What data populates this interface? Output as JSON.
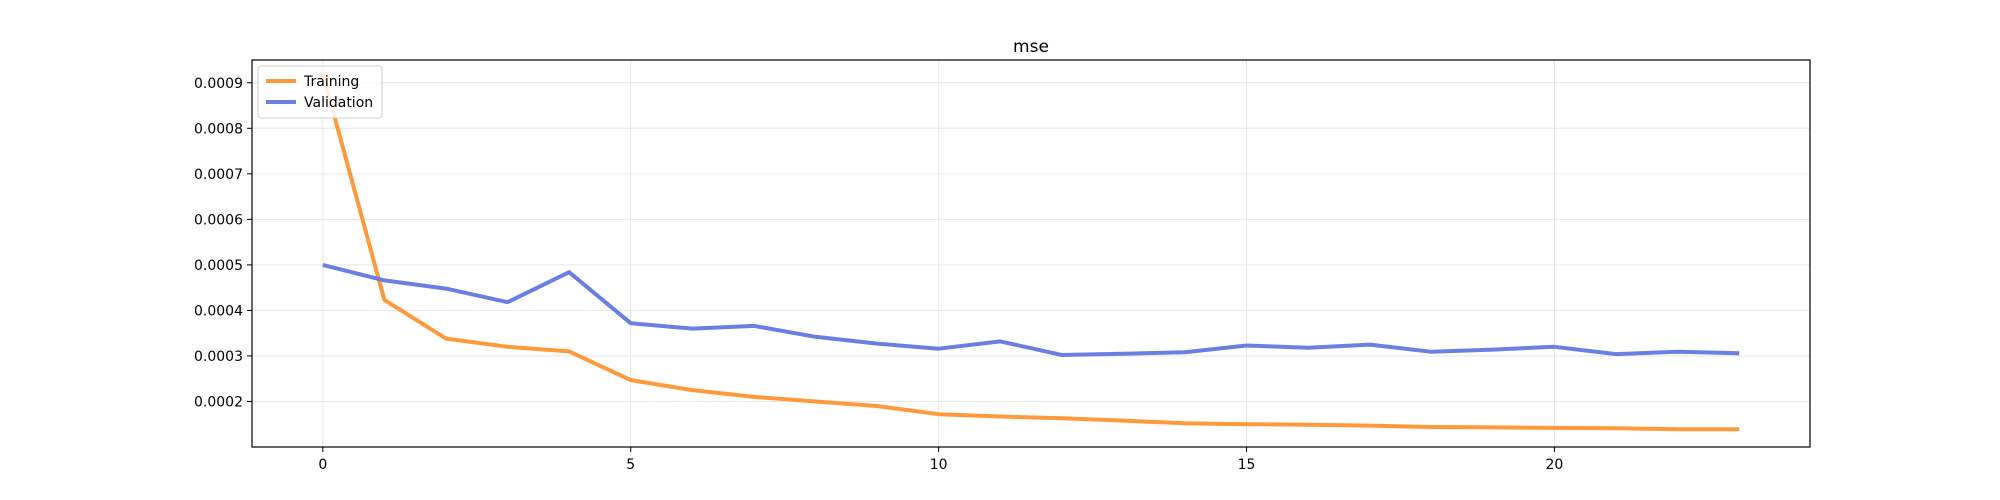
{
  "chart_data": {
    "type": "line",
    "title": "mse",
    "xlabel": "",
    "ylabel": "",
    "xlim": [
      -1.15,
      24.15
    ],
    "ylim": [
      0.0001,
      0.00095
    ],
    "xticks": [
      0,
      5,
      10,
      15,
      20
    ],
    "yticks": [
      0.0002,
      0.0003,
      0.0004,
      0.0005,
      0.0006,
      0.0007,
      0.0008,
      0.0009
    ],
    "ytick_labels": [
      "0.0002",
      "0.0003",
      "0.0004",
      "0.0005",
      "0.0006",
      "0.0007",
      "0.0008",
      "0.0009"
    ],
    "grid": true,
    "legend_position": "top-left",
    "x": [
      0,
      1,
      2,
      3,
      4,
      5,
      6,
      7,
      8,
      9,
      10,
      11,
      12,
      13,
      14,
      15,
      16,
      17,
      18,
      19,
      20,
      21,
      22,
      23
    ],
    "series": [
      {
        "name": "Training",
        "color": "#FF9A3C",
        "values": [
          0.00092,
          0.000423,
          0.000338,
          0.00032,
          0.00031,
          0.000247,
          0.000225,
          0.00021,
          0.0002,
          0.00019,
          0.000172,
          0.000167,
          0.000163,
          0.000158,
          0.000152,
          0.00015,
          0.000149,
          0.000147,
          0.000144,
          0.000143,
          0.000142,
          0.000141,
          0.000139,
          0.000139
        ]
      },
      {
        "name": "Validation",
        "color": "#6B7FE3",
        "values": [
          0.0005,
          0.000466,
          0.000448,
          0.000418,
          0.000484,
          0.000372,
          0.00036,
          0.000366,
          0.000342,
          0.000327,
          0.000316,
          0.000332,
          0.000302,
          0.000305,
          0.000308,
          0.000323,
          0.000318,
          0.000325,
          0.000309,
          0.000314,
          0.00032,
          0.000304,
          0.000309,
          0.000306
        ]
      }
    ]
  }
}
